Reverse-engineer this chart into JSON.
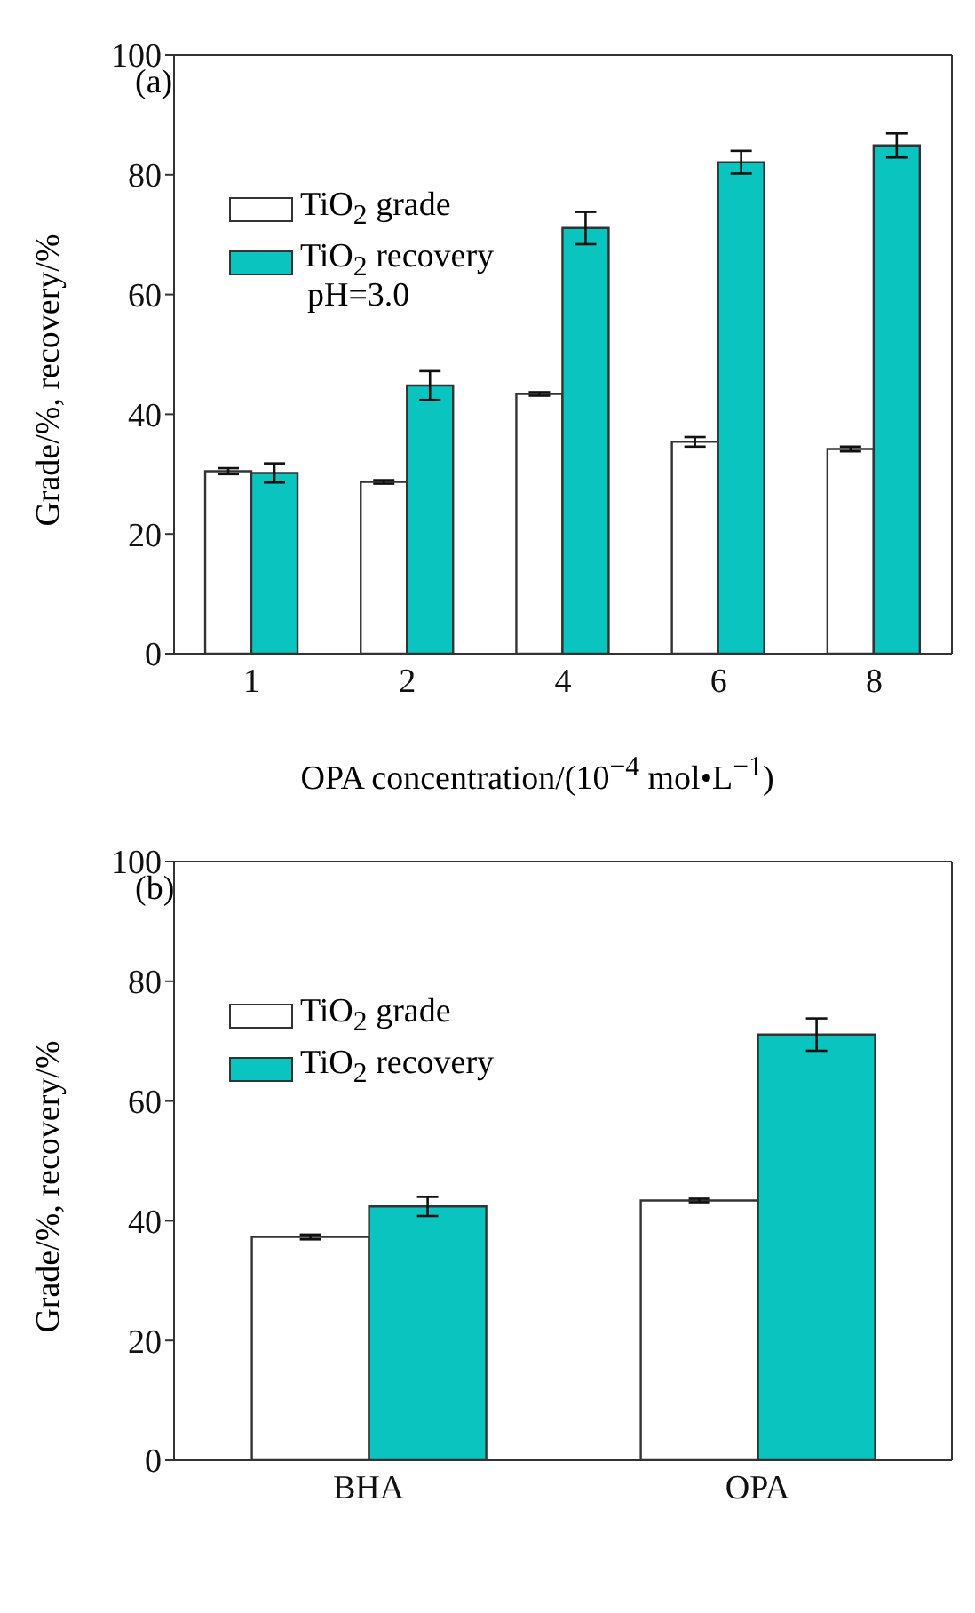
{
  "chart_data": [
    {
      "type": "bar",
      "categories": [
        "1",
        "2",
        "4",
        "6",
        "8"
      ],
      "xlabel": "OPA concentration/(10$^{−4}$ mol•L$^{−1}$)",
      "ylabel": "Grade/%, recovery/%",
      "ylim": [
        0,
        100
      ],
      "yticks": [
        0,
        20,
        40,
        60,
        80,
        100
      ],
      "grid": false,
      "legend": "top left",
      "annotations": [
        "(a)",
        "pH=3.0"
      ],
      "series": [
        {
          "name": "TiO$_{2}$ grade",
          "color": "#ffffff",
          "values": [
            30.5,
            28.7,
            43.4,
            35.4,
            34.2
          ],
          "errors": [
            0.5,
            0.3,
            0.3,
            0.8,
            0.4
          ]
        },
        {
          "name": "TiO$_{2}$ recovery",
          "color": "#0ac5bf",
          "values": [
            30.2,
            44.8,
            71.1,
            82.1,
            84.9
          ],
          "errors": [
            1.6,
            2.4,
            2.7,
            1.9,
            2.0
          ]
        }
      ]
    },
    {
      "type": "bar",
      "categories": [
        "BHA",
        "OPA"
      ],
      "ylabel": "Grade/%, recovery/%",
      "ylim": [
        0,
        100
      ],
      "yticks": [
        0,
        20,
        40,
        60,
        80,
        100
      ],
      "grid": false,
      "legend": "top left",
      "annotations": [
        "(b)"
      ],
      "series": [
        {
          "name": "TiO$_{2}$ grade",
          "color": "#ffffff",
          "values": [
            37.3,
            43.4
          ],
          "errors": [
            0.4,
            0.3
          ]
        },
        {
          "name": "TiO$_{2}$ recovery",
          "color": "#0ac5bf",
          "values": [
            42.4,
            71.1
          ],
          "errors": [
            1.6,
            2.7
          ]
        }
      ]
    }
  ]
}
